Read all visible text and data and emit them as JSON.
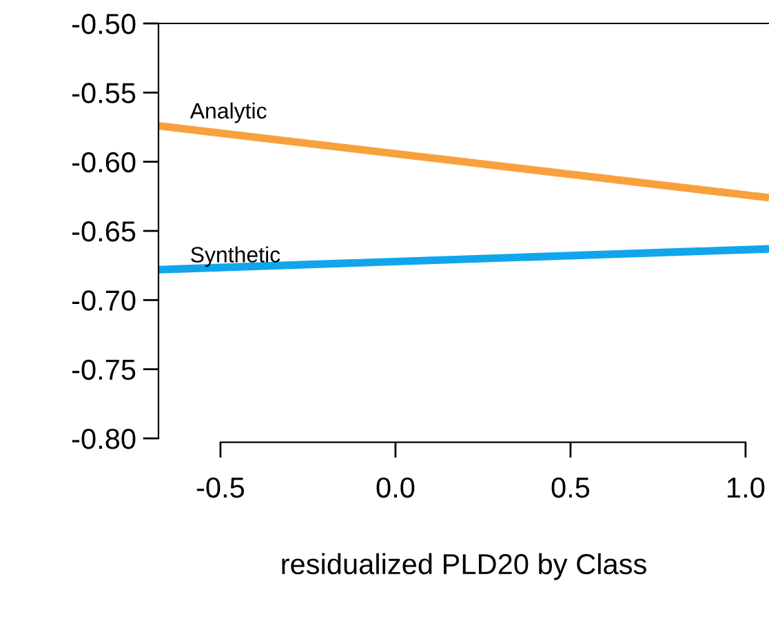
{
  "chart_data": {
    "type": "line",
    "xlabel": "residualized PLD20 by Class",
    "x": [
      -0.677,
      1.067
    ],
    "xlim": [
      -0.677,
      1.067
    ],
    "ylim": [
      -0.8,
      -0.5
    ],
    "xticks": [
      {
        "value": -0.5,
        "label": "-0.5"
      },
      {
        "value": 0.0,
        "label": "0.0"
      },
      {
        "value": 0.5,
        "label": "0.5"
      },
      {
        "value": 1.0,
        "label": "1.0"
      }
    ],
    "yticks": [
      {
        "value": -0.8,
        "label": "-0.80"
      },
      {
        "value": -0.75,
        "label": "-0.75"
      },
      {
        "value": -0.7,
        "label": "-0.70"
      },
      {
        "value": -0.65,
        "label": "-0.65"
      },
      {
        "value": -0.6,
        "label": "-0.60"
      },
      {
        "value": -0.55,
        "label": "-0.55"
      },
      {
        "value": -0.5,
        "label": "-0.50"
      }
    ],
    "grid": false,
    "legend": false,
    "line_style": "solid",
    "marker": "none",
    "series": [
      {
        "name": "Analytic",
        "color": "#f8a13c",
        "values": [
          -0.574,
          -0.626
        ]
      },
      {
        "name": "Synthetic",
        "color": "#11a6ec",
        "values": [
          -0.678,
          -0.663
        ]
      }
    ]
  }
}
